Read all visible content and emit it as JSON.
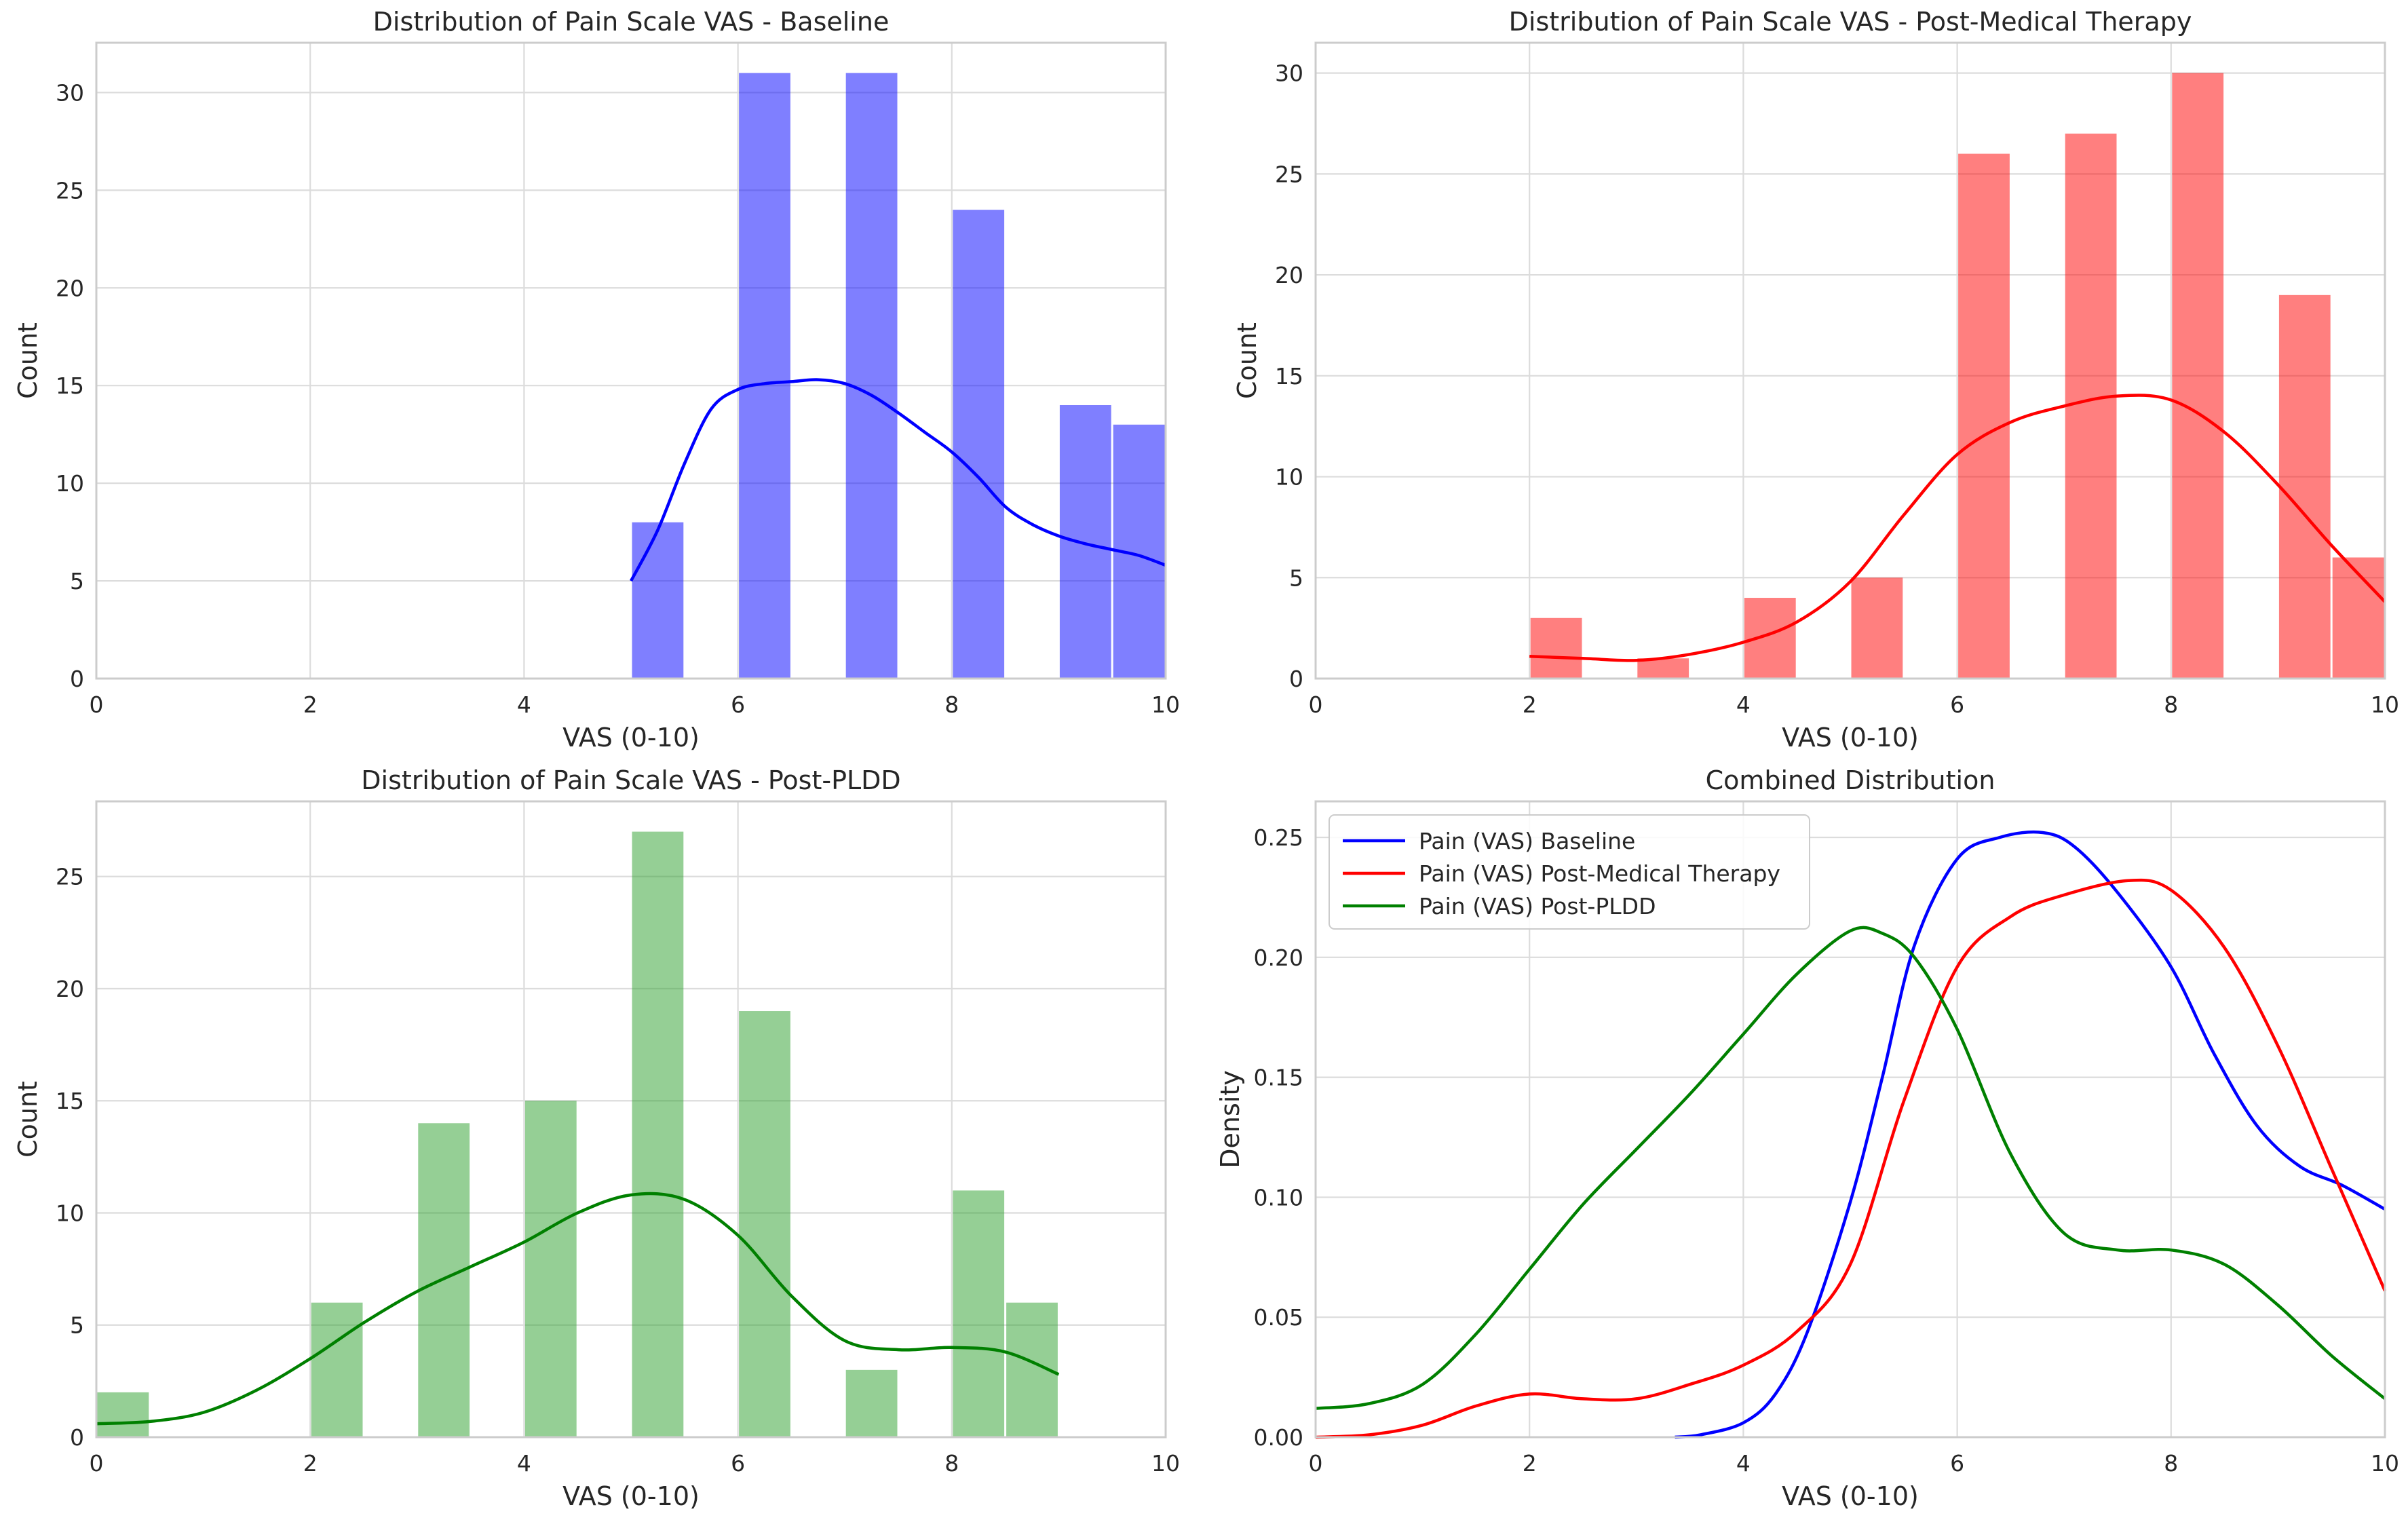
{
  "chart_data": [
    {
      "type": "histogram",
      "title": "Distribution of Pain Scale VAS - Baseline",
      "xlabel": "VAS (0-10)",
      "ylabel": "Count",
      "xlim": [
        0,
        10
      ],
      "ylim": [
        0,
        32.55
      ],
      "xticks": [
        0,
        2,
        4,
        6,
        8,
        10
      ],
      "yticks": [
        0,
        5,
        10,
        15,
        20,
        25,
        30
      ],
      "color": "#0000ff",
      "bars": [
        {
          "x0": 5.0,
          "x1": 5.5,
          "count": 8
        },
        {
          "x0": 6.0,
          "x1": 6.5,
          "count": 31
        },
        {
          "x0": 7.0,
          "x1": 7.5,
          "count": 31
        },
        {
          "x0": 8.0,
          "x1": 8.5,
          "count": 24
        },
        {
          "x0": 9.0,
          "x1": 9.5,
          "count": 14
        },
        {
          "x0": 9.5,
          "x1": 10.0,
          "count": 13
        }
      ],
      "kde": [
        [
          5.0,
          5.0
        ],
        [
          5.25,
          7.6
        ],
        [
          5.5,
          11.0
        ],
        [
          5.75,
          13.8
        ],
        [
          6.0,
          14.8
        ],
        [
          6.25,
          15.1
        ],
        [
          6.5,
          15.2
        ],
        [
          6.75,
          15.3
        ],
        [
          7.0,
          15.1
        ],
        [
          7.25,
          14.5
        ],
        [
          7.5,
          13.6
        ],
        [
          7.75,
          12.6
        ],
        [
          8.0,
          11.6
        ],
        [
          8.25,
          10.3
        ],
        [
          8.5,
          8.8
        ],
        [
          8.75,
          7.9
        ],
        [
          9.0,
          7.3
        ],
        [
          9.25,
          6.9
        ],
        [
          9.5,
          6.6
        ],
        [
          9.75,
          6.3
        ],
        [
          10.0,
          5.8
        ]
      ]
    },
    {
      "type": "histogram",
      "title": "Distribution of Pain Scale VAS - Post-Medical Therapy",
      "xlabel": "VAS (0-10)",
      "ylabel": "Count",
      "xlim": [
        0,
        10
      ],
      "ylim": [
        0,
        31.5
      ],
      "xticks": [
        0,
        2,
        4,
        6,
        8,
        10
      ],
      "yticks": [
        0,
        5,
        10,
        15,
        20,
        25,
        30
      ],
      "color": "#ff0000",
      "bars": [
        {
          "x0": 2.0,
          "x1": 2.5,
          "count": 3
        },
        {
          "x0": 3.0,
          "x1": 3.5,
          "count": 1
        },
        {
          "x0": 4.0,
          "x1": 4.5,
          "count": 4
        },
        {
          "x0": 5.0,
          "x1": 5.5,
          "count": 5
        },
        {
          "x0": 6.0,
          "x1": 6.5,
          "count": 26
        },
        {
          "x0": 7.0,
          "x1": 7.5,
          "count": 27
        },
        {
          "x0": 8.0,
          "x1": 8.5,
          "count": 30
        },
        {
          "x0": 9.0,
          "x1": 9.5,
          "count": 19
        },
        {
          "x0": 9.5,
          "x1": 10.0,
          "count": 6
        }
      ],
      "kde": [
        [
          2.0,
          1.1
        ],
        [
          2.5,
          1.0
        ],
        [
          3.0,
          0.9
        ],
        [
          3.5,
          1.2
        ],
        [
          4.0,
          1.8
        ],
        [
          4.5,
          2.8
        ],
        [
          5.0,
          4.8
        ],
        [
          5.5,
          8.1
        ],
        [
          6.0,
          11.1
        ],
        [
          6.5,
          12.7
        ],
        [
          7.0,
          13.5
        ],
        [
          7.5,
          14.0
        ],
        [
          8.0,
          13.8
        ],
        [
          8.5,
          12.2
        ],
        [
          9.0,
          9.6
        ],
        [
          9.5,
          6.6
        ],
        [
          10.0,
          3.8
        ]
      ]
    },
    {
      "type": "histogram",
      "title": "Distribution of Pain Scale VAS - Post-PLDD",
      "xlabel": "VAS (0-10)",
      "ylabel": "Count",
      "xlim": [
        0,
        10
      ],
      "ylim": [
        0,
        28.35
      ],
      "xticks": [
        0,
        2,
        4,
        6,
        8,
        10
      ],
      "yticks": [
        0,
        5,
        10,
        15,
        20,
        25
      ],
      "color": "#2ca02c",
      "kde_color": "#008000",
      "bars": [
        {
          "x0": 0.0,
          "x1": 0.5,
          "count": 2
        },
        {
          "x0": 2.0,
          "x1": 2.5,
          "count": 6
        },
        {
          "x0": 3.0,
          "x1": 3.5,
          "count": 14
        },
        {
          "x0": 4.0,
          "x1": 4.5,
          "count": 15
        },
        {
          "x0": 5.0,
          "x1": 5.5,
          "count": 27
        },
        {
          "x0": 6.0,
          "x1": 6.5,
          "count": 19
        },
        {
          "x0": 7.0,
          "x1": 7.5,
          "count": 3
        },
        {
          "x0": 8.0,
          "x1": 8.5,
          "count": 11
        },
        {
          "x0": 8.5,
          "x1": 9.0,
          "count": 6
        }
      ],
      "kde": [
        [
          0.0,
          0.6
        ],
        [
          0.5,
          0.7
        ],
        [
          1.0,
          1.1
        ],
        [
          1.5,
          2.1
        ],
        [
          2.0,
          3.5
        ],
        [
          2.5,
          5.1
        ],
        [
          3.0,
          6.5
        ],
        [
          3.5,
          7.6
        ],
        [
          4.0,
          8.7
        ],
        [
          4.5,
          10.0
        ],
        [
          5.0,
          10.8
        ],
        [
          5.5,
          10.6
        ],
        [
          6.0,
          9.0
        ],
        [
          6.5,
          6.3
        ],
        [
          7.0,
          4.3
        ],
        [
          7.5,
          3.9
        ],
        [
          8.0,
          4.0
        ],
        [
          8.5,
          3.8
        ],
        [
          9.0,
          2.8
        ]
      ]
    },
    {
      "type": "line",
      "title": "Combined Distribution",
      "xlabel": "VAS (0-10)",
      "ylabel": "Density",
      "xlim": [
        0,
        10
      ],
      "ylim": [
        0,
        0.265
      ],
      "xticks": [
        0,
        2,
        4,
        6,
        8,
        10
      ],
      "yticks": [
        0,
        0.05,
        0.1,
        0.15,
        0.2,
        0.25
      ],
      "ytick_labels": [
        "0.00",
        "0.05",
        "0.10",
        "0.15",
        "0.20",
        "0.25"
      ],
      "legend_position": "top-left",
      "series": [
        {
          "name": "Pain (VAS) Baseline",
          "color": "#0000ff",
          "points": [
            [
              3.36,
              0.0
            ],
            [
              3.6,
              0.001
            ],
            [
              4.0,
              0.006
            ],
            [
              4.3,
              0.018
            ],
            [
              4.6,
              0.044
            ],
            [
              5.0,
              0.098
            ],
            [
              5.3,
              0.15
            ],
            [
              5.6,
              0.205
            ],
            [
              6.0,
              0.241
            ],
            [
              6.4,
              0.25
            ],
            [
              6.8,
              0.252
            ],
            [
              7.1,
              0.246
            ],
            [
              7.5,
              0.227
            ],
            [
              8.0,
              0.196
            ],
            [
              8.4,
              0.16
            ],
            [
              8.8,
              0.13
            ],
            [
              9.2,
              0.113
            ],
            [
              9.6,
              0.105
            ],
            [
              10.0,
              0.095
            ]
          ]
        },
        {
          "name": "Pain (VAS) Post-Medical Therapy",
          "color": "#ff0000",
          "points": [
            [
              0.0,
              0.0
            ],
            [
              0.5,
              0.001
            ],
            [
              1.0,
              0.005
            ],
            [
              1.5,
              0.013
            ],
            [
              2.0,
              0.018
            ],
            [
              2.5,
              0.016
            ],
            [
              3.0,
              0.016
            ],
            [
              3.5,
              0.022
            ],
            [
              4.0,
              0.03
            ],
            [
              4.5,
              0.044
            ],
            [
              5.0,
              0.072
            ],
            [
              5.5,
              0.14
            ],
            [
              6.0,
              0.196
            ],
            [
              6.5,
              0.217
            ],
            [
              7.0,
              0.226
            ],
            [
              7.6,
              0.232
            ],
            [
              8.0,
              0.228
            ],
            [
              8.5,
              0.204
            ],
            [
              9.0,
              0.163
            ],
            [
              9.5,
              0.112
            ],
            [
              10.0,
              0.061
            ]
          ]
        },
        {
          "name": "Pain (VAS) Post-PLDD",
          "color": "#008000",
          "points": [
            [
              0.0,
              0.012
            ],
            [
              0.5,
              0.014
            ],
            [
              1.0,
              0.022
            ],
            [
              1.5,
              0.043
            ],
            [
              2.0,
              0.07
            ],
            [
              2.5,
              0.097
            ],
            [
              3.0,
              0.12
            ],
            [
              3.5,
              0.143
            ],
            [
              4.0,
              0.168
            ],
            [
              4.5,
              0.193
            ],
            [
              5.0,
              0.211
            ],
            [
              5.3,
              0.21
            ],
            [
              5.6,
              0.2
            ],
            [
              6.0,
              0.17
            ],
            [
              6.5,
              0.118
            ],
            [
              7.0,
              0.085
            ],
            [
              7.5,
              0.078
            ],
            [
              8.0,
              0.078
            ],
            [
              8.5,
              0.072
            ],
            [
              9.0,
              0.055
            ],
            [
              9.5,
              0.034
            ],
            [
              10.0,
              0.016
            ]
          ]
        }
      ]
    }
  ]
}
